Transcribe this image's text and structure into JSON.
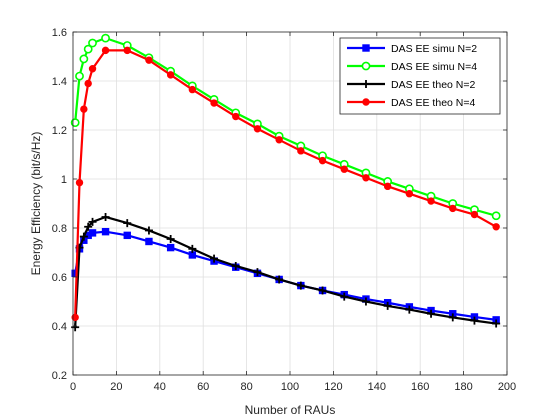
{
  "chart_data": {
    "type": "line",
    "title": "",
    "xlabel": "Number of  RAUs",
    "ylabel": "Energy Efficiency (bit/s/Hz)",
    "xlim": [
      0,
      200
    ],
    "ylim": [
      0.2,
      1.6
    ],
    "xticks": [
      0,
      20,
      40,
      60,
      80,
      100,
      120,
      140,
      160,
      180,
      200
    ],
    "yticks": [
      0.2,
      0.4,
      0.6,
      0.8,
      1.0,
      1.2,
      1.4,
      1.6
    ],
    "xtick_labels": [
      "0",
      "20",
      "40",
      "60",
      "80",
      "100",
      "120",
      "140",
      "160",
      "180",
      "200"
    ],
    "ytick_labels": [
      "0.2",
      "0.4",
      "0.6",
      "0.8",
      "1",
      "1.2",
      "1.4",
      "1.6"
    ],
    "grid": true,
    "legend_position": "top-right",
    "series": [
      {
        "name": "DAS EE simu N=2",
        "color": "#0000ff",
        "marker": "square",
        "x": [
          1,
          3,
          5,
          7,
          9,
          15,
          25,
          35,
          45,
          55,
          65,
          75,
          85,
          95,
          105,
          115,
          125,
          135,
          145,
          155,
          165,
          175,
          185,
          195
        ],
        "y": [
          0.615,
          0.715,
          0.75,
          0.77,
          0.78,
          0.785,
          0.77,
          0.745,
          0.72,
          0.69,
          0.665,
          0.64,
          0.615,
          0.59,
          0.565,
          0.545,
          0.528,
          0.51,
          0.495,
          0.478,
          0.463,
          0.45,
          0.437,
          0.425
        ]
      },
      {
        "name": "DAS EE simu N=4",
        "color": "#00ff00",
        "marker": "circle",
        "x": [
          1,
          3,
          5,
          7,
          9,
          15,
          25,
          35,
          45,
          55,
          65,
          75,
          85,
          95,
          105,
          115,
          125,
          135,
          145,
          155,
          165,
          175,
          185,
          195
        ],
        "y": [
          1.23,
          1.42,
          1.49,
          1.53,
          1.555,
          1.575,
          1.545,
          1.495,
          1.44,
          1.38,
          1.325,
          1.27,
          1.225,
          1.175,
          1.135,
          1.095,
          1.06,
          1.025,
          0.99,
          0.96,
          0.93,
          0.9,
          0.875,
          0.85
        ]
      },
      {
        "name": "DAS EE theo N=2",
        "color": "#000000",
        "marker": "plus",
        "x": [
          1,
          3,
          5,
          7,
          9,
          15,
          25,
          35,
          45,
          55,
          65,
          75,
          85,
          95,
          105,
          115,
          125,
          135,
          145,
          155,
          165,
          175,
          185,
          195
        ],
        "y": [
          0.395,
          0.72,
          0.765,
          0.805,
          0.825,
          0.845,
          0.82,
          0.79,
          0.755,
          0.715,
          0.675,
          0.645,
          0.62,
          0.59,
          0.565,
          0.545,
          0.52,
          0.5,
          0.482,
          0.467,
          0.45,
          0.435,
          0.422,
          0.41
        ]
      },
      {
        "name": "DAS EE theo N=4",
        "color": "#ff0000",
        "marker": "dot",
        "x": [
          1,
          3,
          5,
          7,
          9,
          15,
          25,
          35,
          45,
          55,
          65,
          75,
          85,
          95,
          105,
          115,
          125,
          135,
          145,
          155,
          165,
          175,
          185,
          195
        ],
        "y": [
          0.435,
          0.985,
          1.285,
          1.39,
          1.45,
          1.525,
          1.525,
          1.485,
          1.425,
          1.365,
          1.31,
          1.255,
          1.205,
          1.16,
          1.115,
          1.075,
          1.04,
          1.005,
          0.97,
          0.94,
          0.91,
          0.88,
          0.855,
          0.805
        ]
      }
    ]
  }
}
